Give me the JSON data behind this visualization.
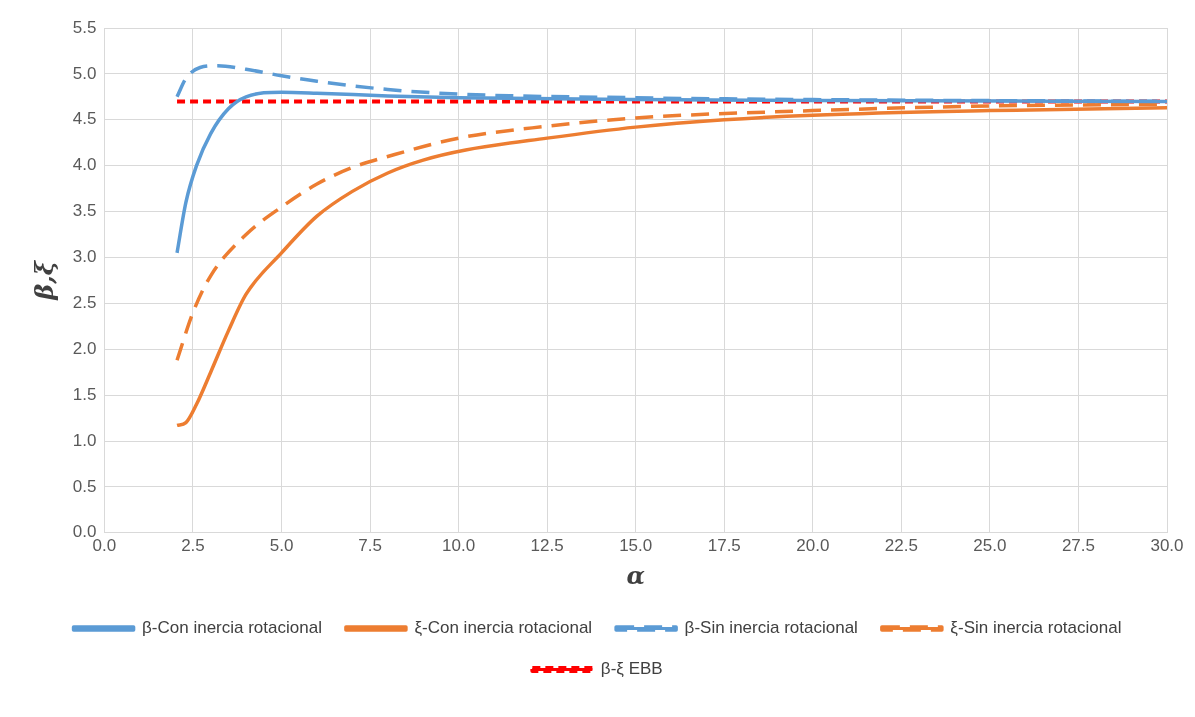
{
  "chart_data": {
    "type": "line",
    "xlabel": "α",
    "ylabel": "β,ξ",
    "xlim": [
      0,
      30
    ],
    "xticks": [
      {
        "value": 0,
        "label": "0.0"
      },
      {
        "value": 2.5,
        "label": "2.5"
      },
      {
        "value": 5,
        "label": "5.0"
      },
      {
        "value": 7.5,
        "label": "7.5"
      },
      {
        "value": 10,
        "label": "10.0"
      },
      {
        "value": 12.5,
        "label": "12.5"
      },
      {
        "value": 15,
        "label": "15.0"
      },
      {
        "value": 17.5,
        "label": "17.5"
      },
      {
        "value": 20,
        "label": "20.0"
      },
      {
        "value": 22.5,
        "label": "22.5"
      },
      {
        "value": 25,
        "label": "25.0"
      },
      {
        "value": 27.5,
        "label": "27.5"
      },
      {
        "value": 30,
        "label": "30.0"
      }
    ],
    "ylim": [
      0,
      5.5
    ],
    "yticks": [
      {
        "value": 0,
        "label": "0.0"
      },
      {
        "value": 0.5,
        "label": "0.5"
      },
      {
        "value": 1,
        "label": "1.0"
      },
      {
        "value": 1.5,
        "label": "1.5"
      },
      {
        "value": 2,
        "label": "2.0"
      },
      {
        "value": 2.5,
        "label": "2.5"
      },
      {
        "value": 3,
        "label": "3.0"
      },
      {
        "value": 3.5,
        "label": "3.5"
      },
      {
        "value": 4,
        "label": "4.0"
      },
      {
        "value": 4.5,
        "label": "4.5"
      },
      {
        "value": 5,
        "label": "5.0"
      },
      {
        "value": 5.5,
        "label": "5.5"
      }
    ],
    "grid": true,
    "legend": "bottom",
    "marker": "none",
    "series": [
      {
        "name": "β-Con inercia rotacional",
        "color": "#5b9bd5",
        "line_style": "solid",
        "x": [
          2.05,
          2.3,
          2.6,
          3,
          3.5,
          4,
          5,
          6,
          8,
          10,
          15,
          20,
          30
        ],
        "values": [
          3.05,
          3.6,
          4.0,
          4.35,
          4.62,
          4.75,
          4.8,
          4.79,
          4.76,
          4.74,
          4.72,
          4.71,
          4.7
        ]
      },
      {
        "name": "ξ-Con inercia rotacional",
        "color": "#ed7d31",
        "line_style": "solid",
        "x": [
          2.05,
          2.3,
          2.6,
          3,
          3.5,
          4,
          5,
          6,
          7,
          8,
          9,
          10.2,
          12.5,
          15,
          17.5,
          20,
          25,
          30
        ],
        "values": [
          1.17,
          1.2,
          1.4,
          1.75,
          2.2,
          2.6,
          3.05,
          3.45,
          3.72,
          3.92,
          4.06,
          4.17,
          4.3,
          4.42,
          4.5,
          4.55,
          4.6,
          4.63
        ]
      },
      {
        "name": "β-Sin inercia rotacional",
        "color": "#5b9bd5",
        "line_style": "dashed",
        "x": [
          2.05,
          2.3,
          2.7,
          3.2,
          4,
          5,
          6,
          8,
          10,
          15,
          20,
          30
        ],
        "values": [
          4.75,
          4.95,
          5.07,
          5.09,
          5.05,
          4.98,
          4.92,
          4.83,
          4.78,
          4.74,
          4.72,
          4.7
        ]
      },
      {
        "name": "ξ-Sin inercia rotacional",
        "color": "#ed7d31",
        "line_style": "dashed",
        "x": [
          2.05,
          2.5,
          3,
          4,
          5,
          6,
          7,
          8,
          10,
          12.5,
          15,
          20,
          25,
          30
        ],
        "values": [
          1.88,
          2.4,
          2.8,
          3.25,
          3.55,
          3.8,
          3.98,
          4.1,
          4.3,
          4.43,
          4.52,
          4.6,
          4.65,
          4.67
        ]
      },
      {
        "name": "β-ξ EBB",
        "color": "#ff0000",
        "line_style": "dotted",
        "x": [
          2.05,
          30
        ],
        "values": [
          4.7,
          4.7
        ]
      }
    ]
  }
}
